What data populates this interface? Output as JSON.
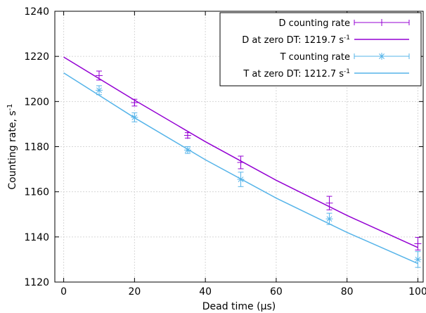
{
  "chart_data": {
    "type": "line",
    "xlabel": "Dead time (µs)",
    "ylabel_main": "Counting rate, s",
    "ylabel_sup": "-1",
    "xlim": [
      -2.5,
      101.5
    ],
    "ylim": [
      1120,
      1240
    ],
    "x_ticks": [
      0,
      20,
      40,
      60,
      80,
      100
    ],
    "y_ticks": [
      1120,
      1140,
      1160,
      1180,
      1200,
      1220,
      1240
    ],
    "grid": true,
    "legend_position": "top-right",
    "colors": {
      "D": "#9400d3",
      "T": "#56b4e9"
    },
    "series": [
      {
        "name": "D counting rate",
        "kind": "points",
        "marker": "plus",
        "color": "#9400d3",
        "x": [
          10,
          20,
          35,
          50,
          75,
          100
        ],
        "y": [
          1211.5,
          1199.5,
          1185,
          1173,
          1155,
          1137
        ],
        "yerr": [
          2.0,
          1.5,
          1.2,
          2.8,
          3.0,
          2.8
        ]
      },
      {
        "name": "D at zero DT: 1219.7 s",
        "name_sup": "-1",
        "kind": "line",
        "color": "#9400d3",
        "x": [
          0,
          20,
          40,
          60,
          80,
          100
        ],
        "y": [
          1219.7,
          1200.6,
          1182.2,
          1165.1,
          1149.5,
          1135.3
        ]
      },
      {
        "name": "T counting rate",
        "kind": "points",
        "marker": "asterisk",
        "color": "#56b4e9",
        "x": [
          10,
          20,
          35,
          50,
          75,
          100
        ],
        "y": [
          1205,
          1193,
          1178.5,
          1165.5,
          1148,
          1130
        ],
        "yerr": [
          2.0,
          2.0,
          1.5,
          3.2,
          2.5,
          3.5
        ]
      },
      {
        "name": "T at zero DT: 1212.7 s",
        "name_sup": "-1",
        "kind": "line",
        "color": "#56b4e9",
        "x": [
          0,
          20,
          40,
          60,
          80,
          100
        ],
        "y": [
          1212.7,
          1192.8,
          1174.2,
          1157.2,
          1142.0,
          1128.2
        ]
      }
    ]
  }
}
